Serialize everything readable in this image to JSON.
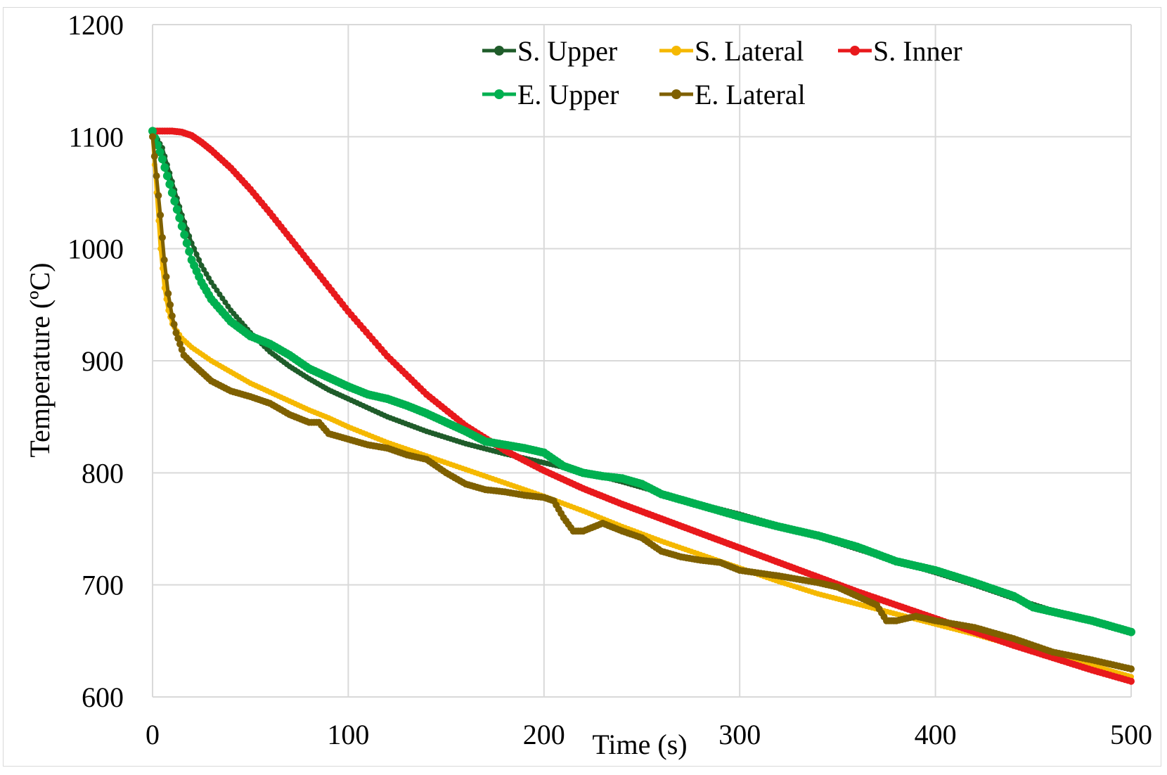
{
  "chart_data": {
    "type": "line",
    "title": "",
    "xlabel": "Time (s)",
    "ylabel": "Temperature (ºC)",
    "xlim": [
      0,
      500
    ],
    "ylim": [
      600,
      1200
    ],
    "xticks": [
      0,
      100,
      200,
      300,
      400,
      500
    ],
    "yticks": [
      600,
      700,
      800,
      900,
      1000,
      1100,
      1200
    ],
    "grid": true,
    "legend_position": "top",
    "series": [
      {
        "name": "S. Upper",
        "color": "#1f5c2a",
        "x": [
          0,
          5,
          10,
          15,
          20,
          25,
          30,
          40,
          50,
          60,
          70,
          80,
          90,
          100,
          120,
          140,
          160,
          180,
          200,
          220,
          240,
          260,
          280,
          300,
          320,
          340,
          360,
          380,
          400,
          420,
          440,
          460,
          480,
          500
        ],
        "y": [
          1105,
          1090,
          1060,
          1030,
          1005,
          985,
          970,
          945,
          925,
          908,
          895,
          884,
          874,
          866,
          850,
          837,
          826,
          817,
          809,
          801,
          792,
          782,
          772,
          763,
          753,
          743,
          732,
          721,
          711,
          700,
          688,
          677,
          667,
          657
        ]
      },
      {
        "name": "S. Lateral",
        "color": "#f5b800",
        "x": [
          0,
          2,
          4,
          6,
          8,
          10,
          15,
          20,
          30,
          40,
          50,
          60,
          70,
          80,
          90,
          100,
          120,
          140,
          160,
          180,
          200,
          220,
          240,
          260,
          280,
          300,
          320,
          340,
          360,
          380,
          400,
          420,
          440,
          460,
          480,
          500
        ],
        "y": [
          1100,
          1050,
          1000,
          965,
          945,
          933,
          920,
          912,
          900,
          890,
          880,
          872,
          864,
          856,
          849,
          841,
          827,
          815,
          803,
          791,
          779,
          766,
          752,
          739,
          727,
          715,
          703,
          692,
          683,
          674,
          665,
          656,
          646,
          637,
          628,
          618
        ]
      },
      {
        "name": "S. Inner",
        "color": "#e8191c",
        "x": [
          0,
          5,
          10,
          15,
          20,
          25,
          30,
          40,
          50,
          60,
          70,
          80,
          90,
          100,
          120,
          140,
          160,
          180,
          200,
          220,
          240,
          260,
          280,
          300,
          320,
          340,
          360,
          380,
          400,
          420,
          440,
          460,
          480,
          500
        ],
        "y": [
          1105,
          1105,
          1105,
          1104,
          1101,
          1095,
          1088,
          1072,
          1053,
          1032,
          1010,
          988,
          966,
          944,
          904,
          870,
          842,
          820,
          802,
          786,
          772,
          759,
          746,
          733,
          720,
          707,
          694,
          682,
          670,
          658,
          646,
          635,
          624,
          614
        ]
      },
      {
        "name": "E. Upper",
        "color": "#00b050",
        "x": [
          0,
          5,
          10,
          15,
          20,
          25,
          30,
          40,
          50,
          60,
          70,
          80,
          90,
          100,
          110,
          120,
          130,
          140,
          150,
          160,
          170,
          180,
          190,
          200,
          210,
          220,
          230,
          240,
          250,
          260,
          280,
          300,
          320,
          340,
          360,
          380,
          400,
          420,
          440,
          450,
          460,
          480,
          500
        ],
        "y": [
          1105,
          1080,
          1050,
          1020,
          990,
          970,
          955,
          935,
          922,
          915,
          905,
          893,
          885,
          877,
          870,
          866,
          860,
          853,
          845,
          837,
          828,
          825,
          822,
          818,
          806,
          800,
          797,
          795,
          790,
          781,
          771,
          761,
          752,
          744,
          734,
          721,
          713,
          702,
          690,
          680,
          676,
          668,
          658
        ]
      },
      {
        "name": "E. Lateral",
        "color": "#7f6000",
        "x": [
          0,
          2,
          4,
          6,
          8,
          10,
          12,
          14,
          16,
          20,
          25,
          30,
          40,
          50,
          60,
          70,
          80,
          85,
          90,
          100,
          110,
          120,
          130,
          140,
          150,
          160,
          170,
          180,
          190,
          200,
          205,
          210,
          215,
          220,
          230,
          240,
          250,
          260,
          270,
          280,
          290,
          300,
          320,
          340,
          350,
          360,
          370,
          375,
          380,
          390,
          400,
          420,
          440,
          460,
          480,
          500
        ],
        "y": [
          1100,
          1065,
          1030,
          990,
          960,
          940,
          925,
          915,
          905,
          898,
          890,
          882,
          873,
          868,
          862,
          852,
          845,
          845,
          835,
          830,
          825,
          822,
          816,
          812,
          800,
          790,
          785,
          783,
          780,
          778,
          775,
          760,
          748,
          748,
          755,
          748,
          742,
          730,
          725,
          722,
          720,
          713,
          708,
          702,
          698,
          690,
          682,
          668,
          668,
          672,
          668,
          662,
          652,
          640,
          633,
          625
        ]
      }
    ]
  }
}
